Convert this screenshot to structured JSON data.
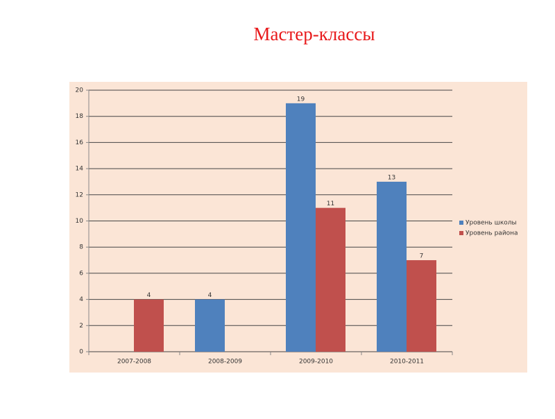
{
  "chart_data": {
    "type": "bar",
    "title": "Мастер-классы",
    "categories": [
      "2007-2008",
      "2008-2009",
      "2009-2010",
      "2010-2011"
    ],
    "series": [
      {
        "name": "Уровень школы",
        "color": "#4f81bd",
        "values": [
          null,
          4,
          19,
          13
        ]
      },
      {
        "name": "Уровень района",
        "color": "#c0504d",
        "values": [
          4,
          null,
          11,
          7
        ]
      }
    ],
    "ylim": [
      0,
      20
    ],
    "yticks": [
      0,
      2,
      4,
      6,
      8,
      10,
      12,
      14,
      16,
      18,
      20
    ],
    "grid": true,
    "legend": "right"
  }
}
